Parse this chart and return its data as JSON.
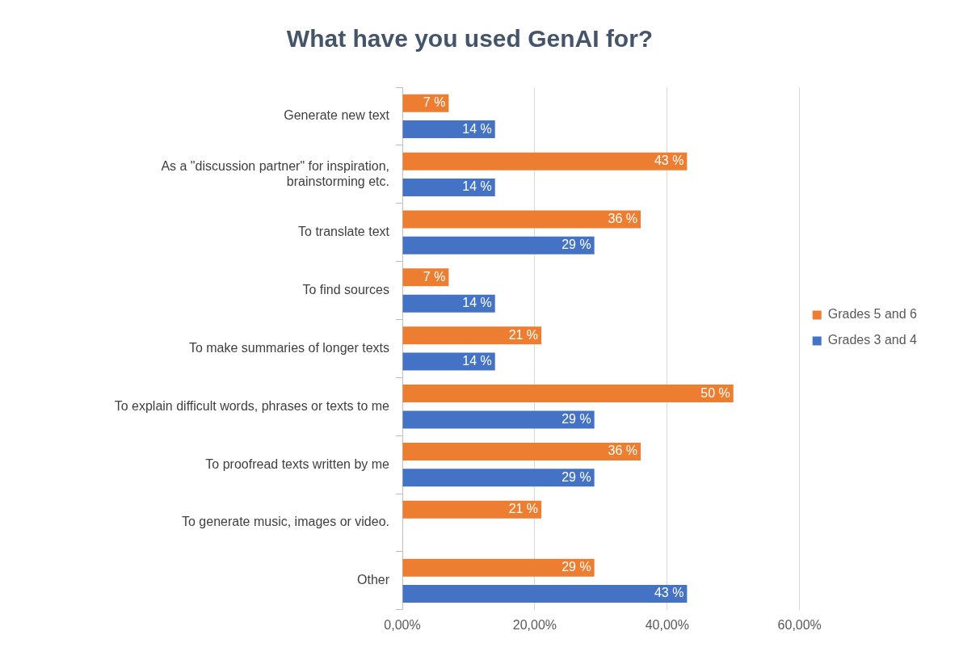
{
  "chart_data": {
    "type": "bar",
    "orientation": "horizontal",
    "title": "What have you used GenAI for?",
    "categories": [
      "Generate new text",
      "As a \"discussion partner\" for inspiration, brainstorming etc.",
      "To translate text",
      "To find sources",
      "To make summaries of longer texts",
      "To explain difficult words, phrases or texts to me",
      "To proofread texts written by me",
      "To generate music, images or video.",
      "Other"
    ],
    "series": [
      {
        "name": "Grades 5 and 6",
        "color": "#ed7d31",
        "values": [
          7,
          43,
          36,
          7,
          21,
          50,
          36,
          21,
          29
        ],
        "value_labels": [
          "7 %",
          "43 %",
          "36 %",
          "7 %",
          "21 %",
          "50 %",
          "36 %",
          "21 %",
          "29 %"
        ]
      },
      {
        "name": "Grades 3 and 4",
        "color": "#4472c4",
        "values": [
          14,
          14,
          29,
          14,
          14,
          29,
          29,
          null,
          43
        ],
        "value_labels": [
          "14 %",
          "14 %",
          "29 %",
          "14 %",
          "14 %",
          "29 %",
          "29 %",
          null,
          "43 %"
        ]
      }
    ],
    "xlim": [
      0,
      60
    ],
    "xticks": [
      {
        "value": 0,
        "label": "0,00%"
      },
      {
        "value": 20,
        "label": "20,00%"
      },
      {
        "value": 40,
        "label": "40,00%"
      },
      {
        "value": 60,
        "label": "60,00%"
      }
    ],
    "grid": "x",
    "legend": "right"
  }
}
